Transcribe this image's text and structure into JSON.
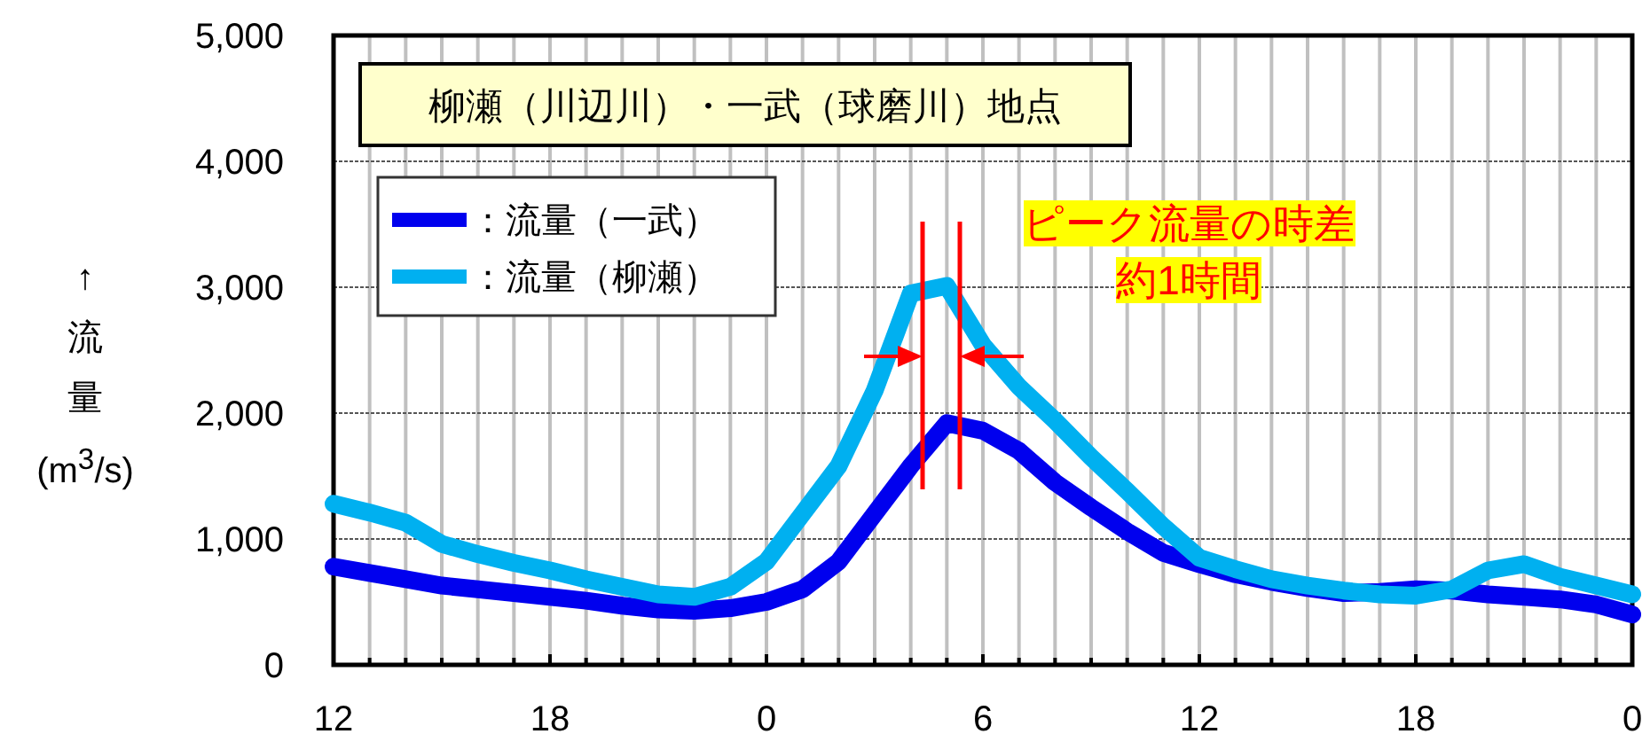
{
  "chart_data": {
    "type": "line",
    "title": "柳瀬（川辺川）・一武（球磨川）地点",
    "ylabel": "↑流量(m$^{3}$/s)",
    "categories": [
      "12",
      null,
      null,
      null,
      null,
      null,
      "18",
      null,
      null,
      null,
      null,
      null,
      "0",
      null,
      null,
      null,
      null,
      null,
      "6",
      null,
      null,
      null,
      null,
      null,
      "12",
      null,
      null,
      null,
      null,
      null,
      "18",
      null,
      null,
      null,
      null,
      null,
      "0"
    ],
    "ylim": [
      0,
      5000
    ],
    "yticks": [
      {
        "value": 0,
        "label": "0"
      },
      {
        "value": 1000,
        "label": "1,000"
      },
      {
        "value": 2000,
        "label": "2,000"
      },
      {
        "value": 3000,
        "label": "3,000"
      },
      {
        "value": 4000,
        "label": "4,000"
      },
      {
        "value": 5000,
        "label": "5,000"
      }
    ],
    "grid": true,
    "legend": "top left",
    "marker": "none",
    "line_style": "solid",
    "series": [
      {
        "name": "：流量（一武）",
        "color": "#0000ee",
        "values": [
          780,
          730,
          680,
          630,
          600,
          570,
          540,
          510,
          470,
          440,
          430,
          450,
          500,
          600,
          820,
          1200,
          1580,
          1920,
          1860,
          1700,
          1450,
          1250,
          1060,
          890,
          800,
          720,
          660,
          610,
          570,
          580,
          600,
          590,
          560,
          540,
          520,
          480,
          400
        ]
      },
      {
        "name": "：流量（柳瀬）",
        "color": "#00b0f0",
        "values": [
          1280,
          1210,
          1130,
          960,
          880,
          810,
          750,
          680,
          620,
          560,
          540,
          620,
          820,
          1200,
          1580,
          2180,
          2950,
          3010,
          2540,
          2210,
          1940,
          1650,
          1380,
          1100,
          850,
          760,
          680,
          630,
          590,
          560,
          550,
          600,
          750,
          800,
          700,
          630,
          560
        ]
      }
    ],
    "annotations": [
      "ピーク流量の時差約1時間"
    ]
  }
}
